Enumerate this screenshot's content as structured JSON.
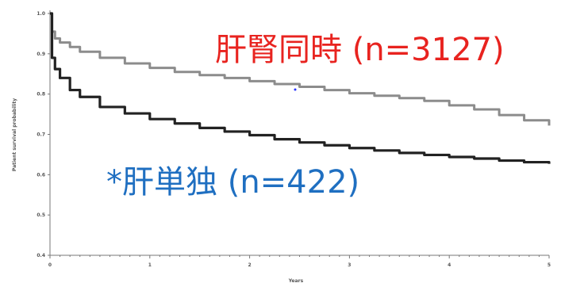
{
  "chart_data": {
    "type": "line",
    "title": "",
    "xlabel": "Years",
    "ylabel": "Patient survival probability",
    "xlim": [
      0,
      5
    ],
    "ylim": [
      0.4,
      1.0
    ],
    "x_ticks": [
      "0",
      "1",
      "2",
      "3",
      "4",
      "5"
    ],
    "y_ticks": [
      "0.4",
      "0.5",
      "0.6",
      "0.7",
      "0.8",
      "0.9",
      "1.0"
    ],
    "grid": false,
    "series": [
      {
        "name": "肝腎同時 (n=3127)",
        "color": "#8c8c8c",
        "x": [
          0,
          0.02,
          0.05,
          0.1,
          0.2,
          0.3,
          0.5,
          0.75,
          1.0,
          1.25,
          1.5,
          1.75,
          2.0,
          2.25,
          2.5,
          2.75,
          3.0,
          3.25,
          3.5,
          3.75,
          4.0,
          4.25,
          4.5,
          4.75,
          5.0
        ],
        "y": [
          1.0,
          0.955,
          0.938,
          0.928,
          0.917,
          0.905,
          0.89,
          0.876,
          0.865,
          0.855,
          0.847,
          0.84,
          0.832,
          0.825,
          0.818,
          0.81,
          0.802,
          0.796,
          0.79,
          0.783,
          0.772,
          0.762,
          0.748,
          0.735,
          0.722
        ]
      },
      {
        "name": "*肝単独 (n=422)",
        "color": "#222222",
        "x": [
          0,
          0.02,
          0.05,
          0.1,
          0.2,
          0.3,
          0.5,
          0.75,
          1.0,
          1.25,
          1.5,
          1.75,
          2.0,
          2.25,
          2.5,
          2.75,
          3.0,
          3.25,
          3.5,
          3.75,
          4.0,
          4.25,
          4.5,
          4.75,
          5.0
        ],
        "y": [
          1.0,
          0.89,
          0.862,
          0.84,
          0.81,
          0.793,
          0.768,
          0.752,
          0.738,
          0.727,
          0.716,
          0.707,
          0.698,
          0.688,
          0.68,
          0.673,
          0.666,
          0.66,
          0.654,
          0.649,
          0.644,
          0.64,
          0.635,
          0.631,
          0.627
        ]
      }
    ],
    "annotations": {
      "red": "肝腎同時 (n=3127)",
      "blue": "*肝単独 (n=422)",
      "blue_color": "#1f6fc1",
      "red_color": "#e8231f"
    }
  }
}
